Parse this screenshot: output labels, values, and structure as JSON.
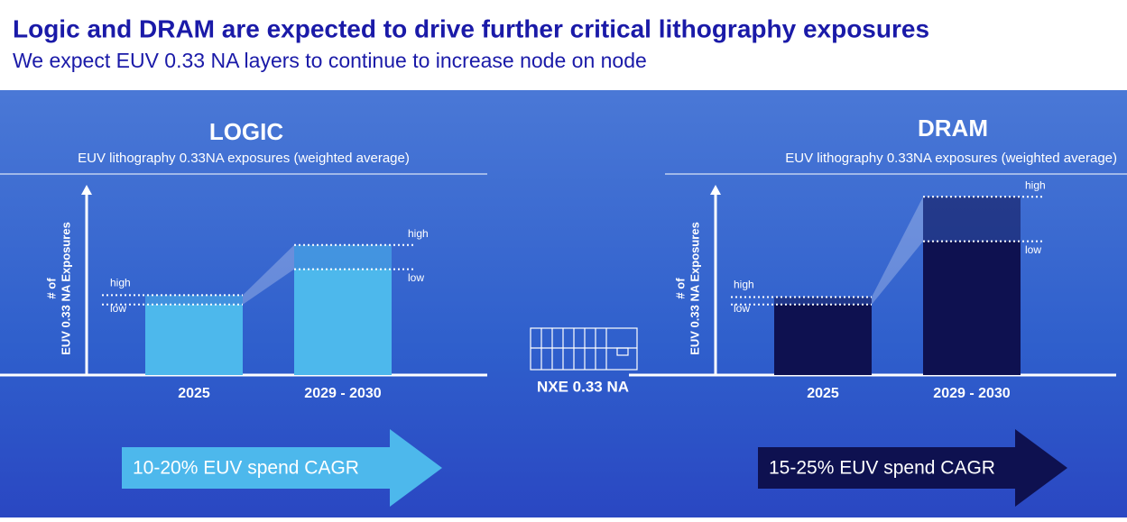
{
  "title": "Logic and DRAM are expected to drive further critical lithography exposures",
  "subtitle": "We expect EUV 0.33 NA layers to continue to increase node on node",
  "center_label": "NXE 0.33 NA",
  "chart_data": [
    {
      "type": "bar",
      "title": "LOGIC",
      "subtitle": "EUV lithography 0.33NA exposures (weighted average)",
      "ylabel": [
        "# of",
        "EUV 0.33 NA Exposures"
      ],
      "categories": [
        "2025",
        "2029 - 2030"
      ],
      "series": [
        {
          "name": "low",
          "values": [
            38,
            57
          ]
        },
        {
          "name": "high",
          "values": [
            43,
            70
          ]
        }
      ],
      "ylim": [
        0,
        100
      ],
      "color": "#4db8ec",
      "cagr_label": "10-20% EUV spend CAGR"
    },
    {
      "type": "bar",
      "title": "DRAM",
      "subtitle": "EUV lithography 0.33NA exposures (weighted average)",
      "ylabel": [
        "# of",
        "EUV 0.33 NA Exposures"
      ],
      "categories": [
        "2025",
        "2029 - 2030"
      ],
      "series": [
        {
          "name": "low",
          "values": [
            38,
            72
          ]
        },
        {
          "name": "high",
          "values": [
            42,
            96
          ]
        }
      ],
      "ylim": [
        0,
        100
      ],
      "color": "#0e1150",
      "cagr_label": "15-25% EUV spend CAGR"
    }
  ]
}
